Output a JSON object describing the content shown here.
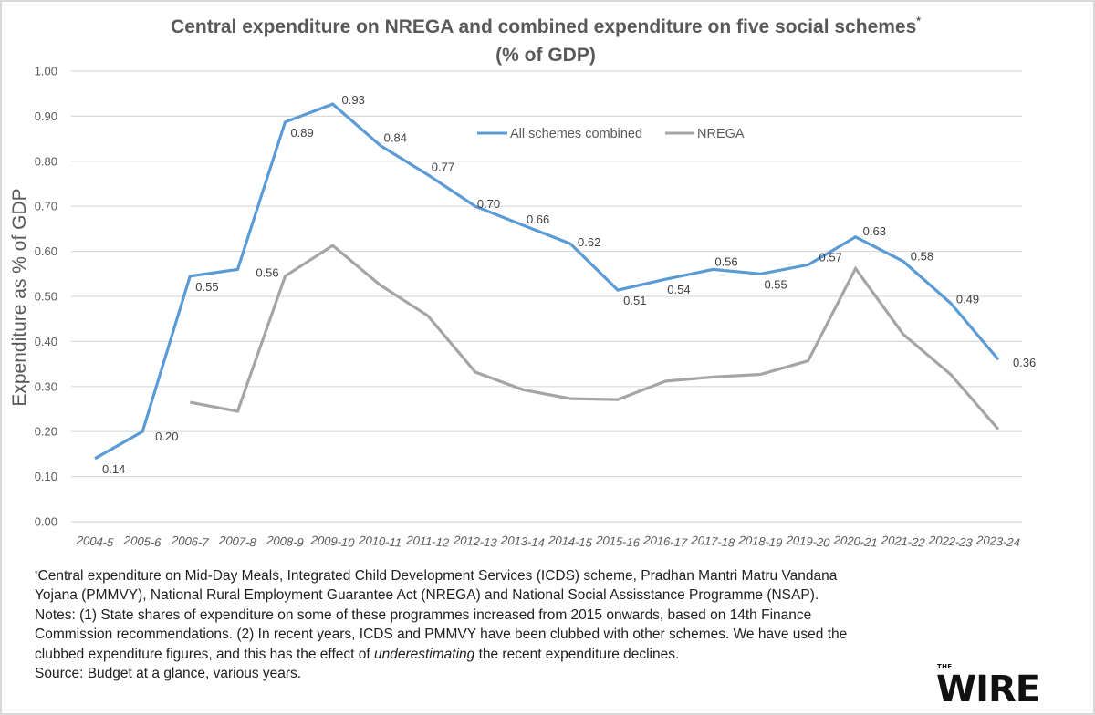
{
  "chart_data": {
    "type": "line",
    "title_line1": "Central expenditure on NREGA and combined expenditure on five social schemes",
    "title_marker": "*",
    "title_line2": "(% of GDP)",
    "xlabel": "",
    "ylabel": "Expenditure as % of GDP",
    "ylim": [
      0,
      1.0
    ],
    "y_ticks": [
      "0.00",
      "0.10",
      "0.20",
      "0.30",
      "0.40",
      "0.50",
      "0.60",
      "0.70",
      "0.80",
      "0.90",
      "1.00"
    ],
    "grid": true,
    "legend_position": "top-center",
    "categories": [
      "2004-5",
      "2005-6",
      "2006-7",
      "2007-8",
      "2008-9",
      "2009-10",
      "2010-11",
      "2011-12",
      "2012-13",
      "2013-14",
      "2014-15",
      "2015-16",
      "2016-17",
      "2017-18",
      "2018-19",
      "2019-20",
      "2020-21",
      "2021-22",
      "2022-23",
      "2023-24"
    ],
    "series": [
      {
        "name": "All schemes combined",
        "color": "#5b9bd5",
        "values": [
          0.14,
          0.2,
          0.545,
          0.56,
          0.887,
          0.927,
          0.835,
          0.77,
          0.7,
          0.658,
          0.617,
          0.514,
          0.538,
          0.56,
          0.55,
          0.57,
          0.632,
          0.578,
          0.485,
          0.36
        ],
        "labels": [
          "0.14",
          "0.20",
          "0.55",
          "0.56",
          "0.89",
          "0.93",
          "0.84",
          "0.77",
          "0.70",
          "0.66",
          "0.62",
          "0.51",
          "0.54",
          "0.56",
          "0.55",
          "0.57",
          "0.63",
          "0.58",
          "0.49",
          "0.36"
        ]
      },
      {
        "name": "NREGA",
        "color": "#a5a5a5",
        "values": [
          null,
          null,
          0.265,
          0.245,
          0.545,
          0.613,
          0.525,
          0.457,
          0.332,
          0.293,
          0.273,
          0.271,
          0.312,
          0.321,
          0.327,
          0.357,
          0.562,
          0.416,
          0.327,
          0.205
        ],
        "labels": []
      }
    ]
  },
  "footnote": {
    "marker": "*",
    "line1": "Central expenditure on Mid-Day Meals, Integrated Child Development Services (ICDS) scheme, Pradhan Mantri Matru Vandana",
    "line2": "Yojana (PMMVY), National Rural Employment Guarantee Act (NREGA) and National Social Assisstance Programme (NSAP).",
    "notes_line1": "Notes: (1) State shares of expenditure on some of these programmes increased from 2015 onwards, based on 14th Finance",
    "notes_line2": "Commission recommendations. (2) In recent years, ICDS and PMMVY have been clubbed with other schemes. We have used the",
    "notes_line3_pre": "clubbed expenditure figures, and this has the effect of ",
    "notes_line3_em": "underestimating",
    "notes_line3_post": " the recent expenditure declines.",
    "source": "Source: Budget at a glance, various years."
  },
  "logo": {
    "small": "THE",
    "large": "WIRE"
  }
}
